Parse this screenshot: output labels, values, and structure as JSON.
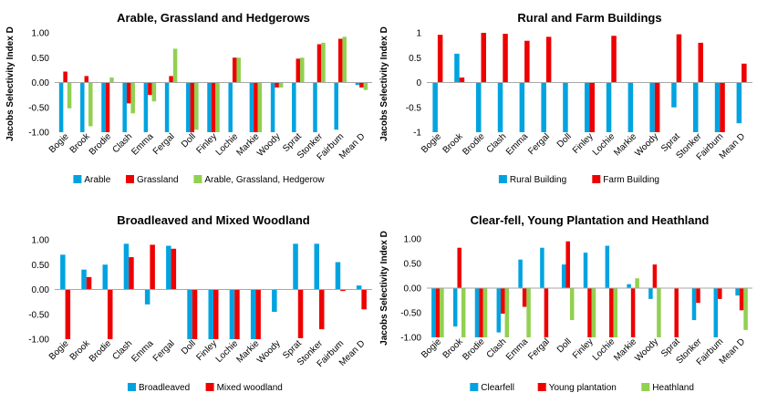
{
  "colors": {
    "blue": "#00A3E0",
    "red": "#EE0000",
    "green": "#92D050",
    "zero_line": "#A6A6A6"
  },
  "chart_data": [
    {
      "type": "bar",
      "title": "Arable, Grassland and Hedgerows",
      "ylabel": "Jacobs Selectivity Index D",
      "ylim": [
        -1.0,
        1.0
      ],
      "yticks": [
        "1.00",
        "0.50",
        "0.00",
        "-0.50",
        "-1.00"
      ],
      "legend_position": "bottom",
      "categories": [
        "Bogie",
        "Brook",
        "Brodie",
        "Clash",
        "Emma",
        "Fergal",
        "Doll",
        "Finley",
        "Lochie",
        "Markie",
        "Woody",
        "Sprat",
        "Stonker",
        "Fairbum",
        "Mean D"
      ],
      "series": [
        {
          "name": "Arable",
          "color": "#00A3E0",
          "values": [
            -1.0,
            -1.0,
            -1.0,
            -1.0,
            -1.0,
            -1.0,
            -1.0,
            -1.0,
            -1.0,
            -1.0,
            -1.0,
            -1.0,
            -1.0,
            -0.95,
            -0.05
          ]
        },
        {
          "name": "Grassland",
          "color": "#EE0000",
          "values": [
            0.22,
            0.13,
            -1.0,
            -0.42,
            -0.25,
            0.13,
            -1.0,
            -1.0,
            0.5,
            -1.0,
            -0.1,
            0.48,
            0.77,
            0.88,
            -0.1
          ]
        },
        {
          "name": "Arable, Grassland, Hedgerow",
          "color": "#92D050",
          "values": [
            -0.52,
            -0.88,
            0.1,
            -0.62,
            -0.38,
            0.68,
            -0.95,
            -1.0,
            0.5,
            -1.0,
            -0.1,
            0.5,
            0.8,
            0.92,
            -0.15
          ]
        }
      ]
    },
    {
      "type": "bar",
      "title": "Rural and Farm Buildings",
      "ylabel": "Jacobs Selectivity Index D",
      "ylim": [
        -1,
        1
      ],
      "yticks": [
        "1",
        "0.5",
        "0",
        "-0.5",
        "-1"
      ],
      "legend_position": "bottom",
      "categories": [
        "Bogie",
        "Brook",
        "Brodie",
        "Clash",
        "Emma",
        "Fergal",
        "Doll",
        "Finley",
        "Lochie",
        "Markie",
        "Woody",
        "Sprat",
        "Stonker",
        "Fairbum",
        "Mean D"
      ],
      "series": [
        {
          "name": "Rural Building",
          "color": "#00A3E0",
          "values": [
            -1,
            0.58,
            -1,
            -1,
            -1,
            -1,
            -1,
            -1,
            -1,
            -1,
            -1,
            -0.5,
            -1,
            -1,
            -0.82
          ]
        },
        {
          "name": "Farm Building",
          "color": "#EE0000",
          "values": [
            0.96,
            0.1,
            1.0,
            0.98,
            0.84,
            0.92,
            0,
            -1,
            0.94,
            0,
            -1,
            0.97,
            0.8,
            -1,
            0.38
          ]
        }
      ]
    },
    {
      "type": "bar",
      "title": "Broadleaved and Mixed Woodland",
      "ylabel": "",
      "ylim": [
        -1.0,
        1.0
      ],
      "yticks": [
        "1.00",
        "0.50",
        "0.00",
        "-0.50",
        "-1.00"
      ],
      "legend_position": "bottom",
      "categories": [
        "Bogie",
        "Brook",
        "Brodie",
        "Clash",
        "Emma",
        "Fergal",
        "Doll",
        "Finley",
        "Lochie",
        "Markie",
        "Woody",
        "Sprat",
        "Stonker",
        "Fairbum",
        "Mean D"
      ],
      "series": [
        {
          "name": "Broadleaved",
          "color": "#00A3E0",
          "values": [
            0.7,
            0.4,
            0.5,
            0.92,
            -0.3,
            0.88,
            -1.0,
            -1.0,
            -1.0,
            -1.0,
            -0.45,
            0.92,
            0.92,
            0.55,
            0.08
          ]
        },
        {
          "name": "Mixed woodland",
          "color": "#EE0000",
          "values": [
            -1.0,
            0.25,
            -1.0,
            0.65,
            0.9,
            0.82,
            -1.0,
            -1.0,
            -1.0,
            -1.0,
            0,
            -0.98,
            -0.8,
            -0.03,
            -0.4
          ]
        }
      ]
    },
    {
      "type": "bar",
      "title": "Clear-fell, Young Plantation and Heathland",
      "ylabel": "Jacobs Selectivity Index D",
      "ylim": [
        -1.0,
        1.0
      ],
      "yticks": [
        "1.00",
        "0.50",
        "0.00",
        "-0.50",
        "-1.00"
      ],
      "legend_position": "bottom",
      "categories": [
        "Bogie",
        "Brook",
        "Brodie",
        "Clash",
        "Emma",
        "Fergal",
        "Doll",
        "Finley",
        "Lochie",
        "Markie",
        "Woody",
        "Sprat",
        "Stonker",
        "Fairbum",
        "Mean D"
      ],
      "series": [
        {
          "name": "Clearfell",
          "color": "#00A3E0",
          "values": [
            -1.0,
            -0.78,
            -1.0,
            -0.9,
            0.58,
            0.82,
            0.48,
            0.72,
            0.86,
            0.08,
            -0.22,
            0,
            -0.65,
            -1.0,
            -0.15
          ]
        },
        {
          "name": "Young plantation",
          "color": "#EE0000",
          "values": [
            -1.0,
            0.82,
            -1.0,
            -0.52,
            -0.38,
            -1.0,
            0.95,
            -1.0,
            -1.0,
            -1.0,
            0.48,
            -1.0,
            -0.3,
            -0.22,
            -0.45
          ]
        },
        {
          "name": "Heathland",
          "color": "#92D050",
          "values": [
            -1.0,
            -1.0,
            -1.0,
            -1.0,
            -1.0,
            0,
            -0.65,
            -1.0,
            -1.0,
            0.2,
            -1.0,
            0,
            0,
            0,
            -0.85
          ]
        }
      ]
    }
  ]
}
